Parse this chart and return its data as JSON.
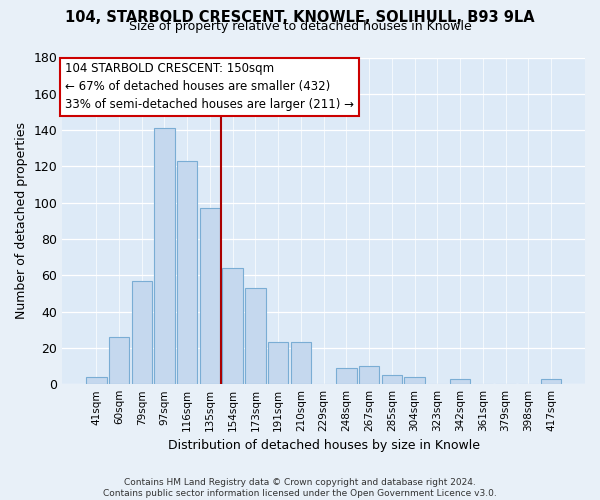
{
  "title": "104, STARBOLD CRESCENT, KNOWLE, SOLIHULL, B93 9LA",
  "subtitle": "Size of property relative to detached houses in Knowle",
  "xlabel": "Distribution of detached houses by size in Knowle",
  "ylabel": "Number of detached properties",
  "bar_labels": [
    "41sqm",
    "60sqm",
    "79sqm",
    "97sqm",
    "116sqm",
    "135sqm",
    "154sqm",
    "173sqm",
    "191sqm",
    "210sqm",
    "229sqm",
    "248sqm",
    "267sqm",
    "285sqm",
    "304sqm",
    "323sqm",
    "342sqm",
    "361sqm",
    "379sqm",
    "398sqm",
    "417sqm"
  ],
  "bar_values": [
    4,
    26,
    57,
    141,
    123,
    97,
    64,
    53,
    23,
    23,
    0,
    9,
    10,
    5,
    4,
    0,
    3,
    0,
    0,
    0,
    3
  ],
  "bar_color": "#c5d8ee",
  "bar_edge_color": "#7aadd4",
  "reference_line_color": "#aa0000",
  "annotation_line1": "104 STARBOLD CRESCENT: 150sqm",
  "annotation_line2": "← 67% of detached houses are smaller (432)",
  "annotation_line3": "33% of semi-detached houses are larger (211) →",
  "annotation_box_color": "white",
  "annotation_box_edge": "#cc0000",
  "ylim": [
    0,
    180
  ],
  "yticks": [
    0,
    20,
    40,
    60,
    80,
    100,
    120,
    140,
    160,
    180
  ],
  "footer_text": "Contains HM Land Registry data © Crown copyright and database right 2024.\nContains public sector information licensed under the Open Government Licence v3.0.",
  "bg_color": "#e8f0f8",
  "plot_bg_color": "#ddeaf7"
}
